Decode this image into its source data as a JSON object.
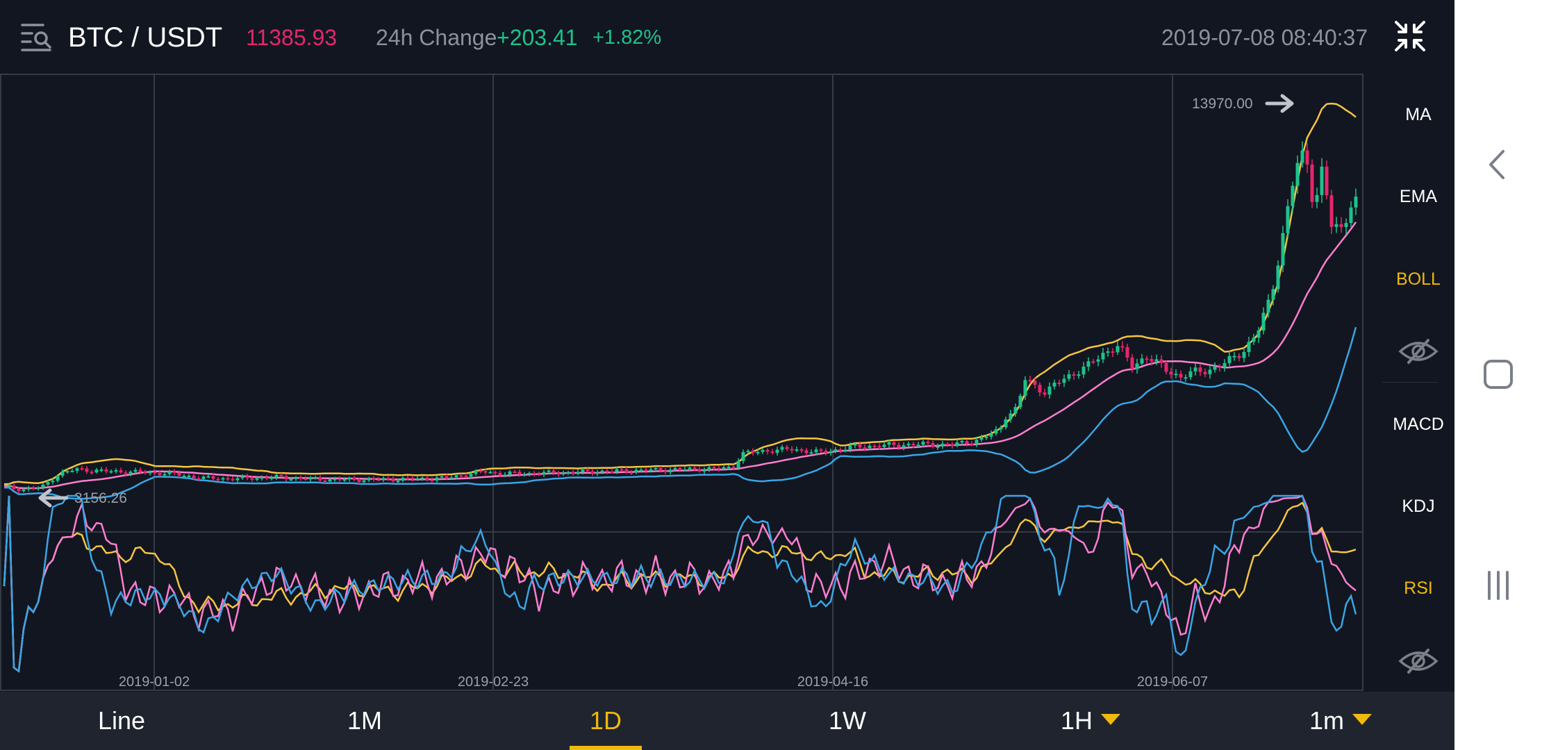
{
  "header": {
    "pair": "BTC / USDT",
    "last_price": "11385.93",
    "change_label": "24h Change",
    "change_abs": "+203.41",
    "change_pct": "+1.82%",
    "timestamp": "2019-07-08 08:40:37"
  },
  "indicators": {
    "main": [
      "MA",
      "EMA",
      "BOLL"
    ],
    "main_active": "BOLL",
    "sub": [
      "MACD",
      "KDJ",
      "RSI"
    ],
    "sub_active": "RSI"
  },
  "timeframes": [
    "Line",
    "1M",
    "1D",
    "1W",
    "1H",
    "1m"
  ],
  "active_timeframe": "1D",
  "colors": {
    "up": "#1ec28b",
    "down": "#e6266d",
    "accent": "#f0b90b",
    "boll_upper": "#f5c542",
    "boll_mid": "#ff7ed0",
    "boll_lower": "#3aa5e6",
    "rsi_fast": "#3aa5e6",
    "rsi_mid": "#ff7ed0",
    "rsi_slow": "#f5c542"
  },
  "chart_data": {
    "type": "candlestick",
    "x_ticks": [
      "2019-01-02",
      "2019-02-23",
      "2019-04-16",
      "2019-06-07"
    ],
    "high_marker": "13970.00",
    "low_marker": "3156.26",
    "ohlc_close_approx": [
      {
        "date": "2018-12-15",
        "close": 3200
      },
      {
        "date": "2019-01-02",
        "close": 3850
      },
      {
        "date": "2019-02-01",
        "close": 3450
      },
      {
        "date": "2019-02-23",
        "close": 4100
      },
      {
        "date": "2019-03-15",
        "close": 3900
      },
      {
        "date": "2019-04-02",
        "close": 4900
      },
      {
        "date": "2019-04-16",
        "close": 5150
      },
      {
        "date": "2019-05-01",
        "close": 5300
      },
      {
        "date": "2019-05-10",
        "close": 6300
      },
      {
        "date": "2019-05-15",
        "close": 8000
      },
      {
        "date": "2019-05-30",
        "close": 8600
      },
      {
        "date": "2019-06-07",
        "close": 7900
      },
      {
        "date": "2019-06-20",
        "close": 9500
      },
      {
        "date": "2019-06-26",
        "close": 12800
      },
      {
        "date": "2019-07-08",
        "close": 11385.93
      }
    ],
    "rsi_sub_chart": true
  }
}
